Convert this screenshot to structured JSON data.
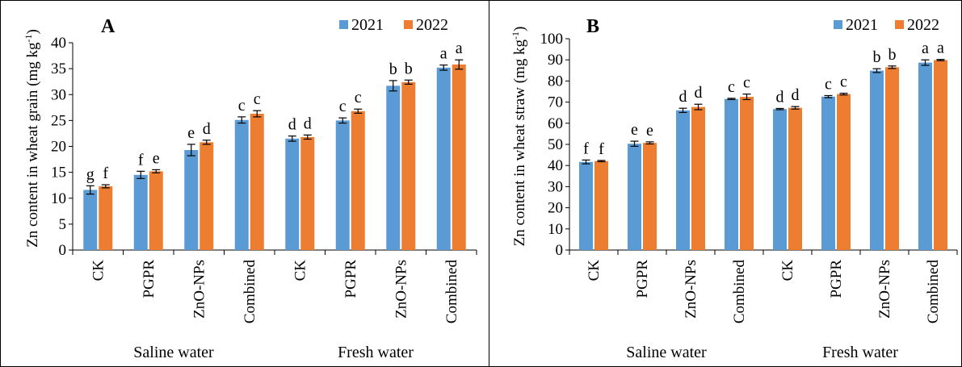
{
  "colors": {
    "series_2021": "#5b9bd5",
    "series_2022": "#ed7d31",
    "axis": "#000000",
    "errorbar": "#000000"
  },
  "chart_data": [
    {
      "type": "bar",
      "panel_label": "A",
      "ylabel_text": "Zn content in wheat grain (mg kg",
      "ylabel_sup": "-1",
      "ylabel_close": ")",
      "ylim": [
        0,
        40
      ],
      "yticks": [
        0,
        5,
        10,
        15,
        20,
        25,
        30,
        35,
        40
      ],
      "grid": false,
      "legend": "top-right",
      "categories": [
        "CK",
        "PGPR",
        "ZnO-NPs",
        "Combined",
        "CK",
        "PGPR",
        "ZnO-NPs",
        "Combined"
      ],
      "groups": [
        {
          "label": "Saline water",
          "span": [
            0,
            3
          ]
        },
        {
          "label": "Fresh water",
          "span": [
            4,
            7
          ]
        }
      ],
      "series": [
        {
          "name": "2021",
          "values": [
            11.6,
            14.5,
            19.3,
            25.1,
            21.5,
            25.0,
            31.7,
            35.2
          ],
          "errors": [
            0.8,
            0.7,
            1.1,
            0.6,
            0.5,
            0.5,
            1.0,
            0.5
          ],
          "letters": [
            "g",
            "f",
            "e",
            "c",
            "d",
            "c",
            "b",
            "a"
          ]
        },
        {
          "name": "2022",
          "values": [
            12.3,
            15.2,
            20.8,
            26.3,
            21.8,
            26.8,
            32.4,
            35.8
          ],
          "errors": [
            0.3,
            0.3,
            0.4,
            0.6,
            0.4,
            0.4,
            0.4,
            0.9
          ],
          "letters": [
            "f",
            "e",
            "d",
            "c",
            "d",
            "c",
            "b",
            "a"
          ]
        }
      ]
    },
    {
      "type": "bar",
      "panel_label": "B",
      "ylabel_text": "Zn content in wheat straw (mg kg",
      "ylabel_sup": "-1",
      "ylabel_close": ")",
      "ylim": [
        0,
        100
      ],
      "yticks": [
        0,
        10,
        20,
        30,
        40,
        50,
        60,
        70,
        80,
        90,
        100
      ],
      "grid": false,
      "legend": "top-right",
      "categories": [
        "CK",
        "PGPR",
        "ZnO-NPs",
        "Combined",
        "CK",
        "PGPR",
        "ZnO-NPs",
        "Combined"
      ],
      "groups": [
        {
          "label": "Saline water",
          "span": [
            0,
            3
          ]
        },
        {
          "label": "Fresh water",
          "span": [
            4,
            7
          ]
        }
      ],
      "series": [
        {
          "name": "2021",
          "values": [
            41.7,
            50.3,
            66.1,
            71.5,
            66.7,
            72.6,
            84.9,
            88.7
          ],
          "errors": [
            0.9,
            1.2,
            1.0,
            0.3,
            0.3,
            0.5,
            0.9,
            1.3
          ],
          "letters": [
            "f",
            "e",
            "d",
            "c",
            "d",
            "c",
            "b",
            "a"
          ]
        },
        {
          "name": "2022",
          "values": [
            42.1,
            50.7,
            67.7,
            72.5,
            67.3,
            73.8,
            86.5,
            89.9
          ],
          "errors": [
            0.3,
            0.5,
            1.3,
            1.3,
            0.6,
            0.4,
            0.6,
            0.3
          ],
          "letters": [
            "f",
            "e",
            "d",
            "c",
            "d",
            "c",
            "b",
            "a"
          ]
        }
      ]
    }
  ]
}
